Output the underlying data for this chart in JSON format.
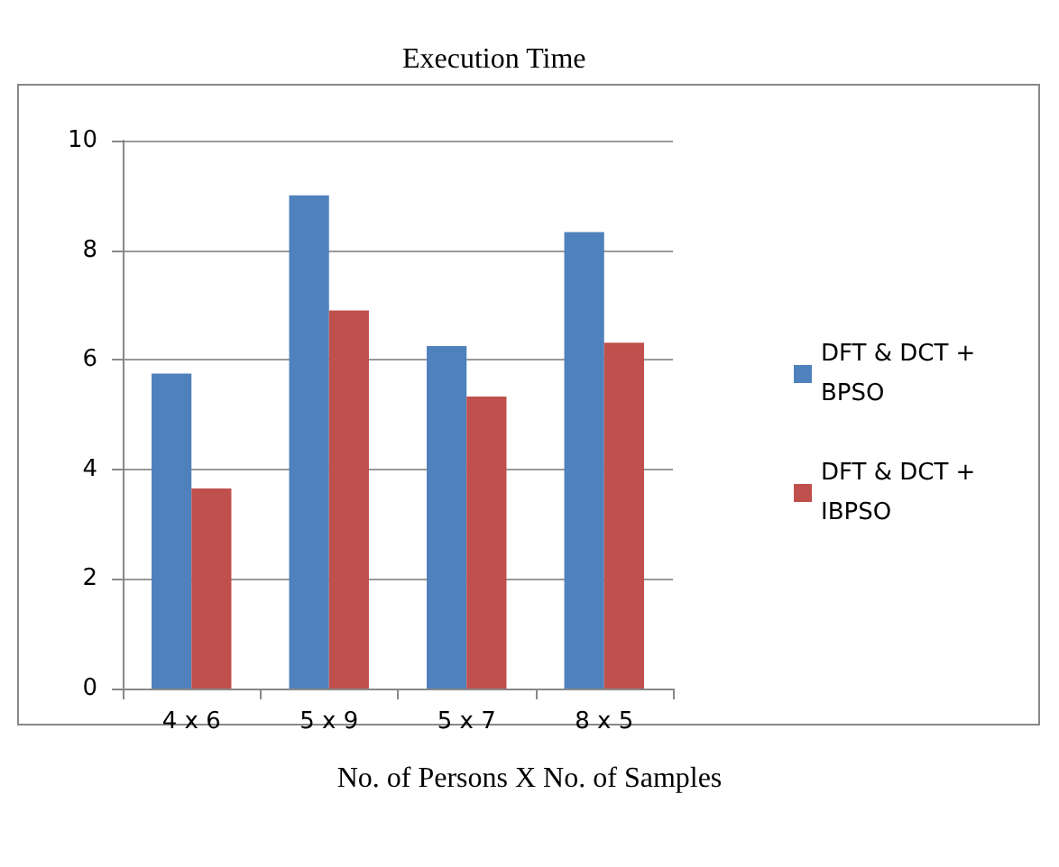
{
  "chart_data": {
    "type": "bar",
    "title": "Execution Time",
    "xlabel": "No. of Persons X No. of Samples",
    "categories": [
      "4 x 6",
      "5 x 9",
      "5 x 7",
      "8 x 5"
    ],
    "series": [
      {
        "name": "DFT & DCT + BPSO",
        "color": "#4f81bd",
        "values": [
          5.75,
          9.0,
          6.25,
          8.33
        ]
      },
      {
        "name": "DFT & DCT + IBPSO",
        "color": "#c0504d",
        "values": [
          3.65,
          6.9,
          5.33,
          6.31
        ]
      }
    ],
    "ylim": [
      0,
      10
    ],
    "yticks": [
      0,
      2,
      4,
      6,
      8,
      10
    ],
    "grid": "y",
    "legend": "right"
  }
}
